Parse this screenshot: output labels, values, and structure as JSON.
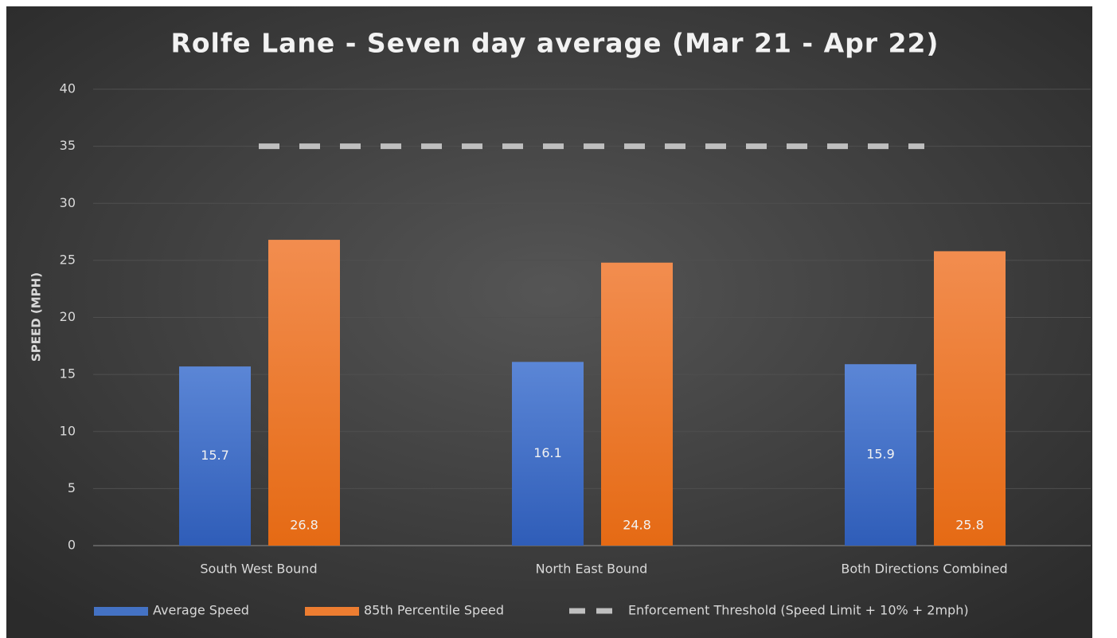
{
  "chart_data": {
    "type": "bar",
    "title": "Rolfe Lane - Seven day average (Mar 21 - Apr 22)",
    "y_label": "SPEED (MPH)",
    "categories": [
      "South West Bound",
      "North East Bound",
      "Both Directions Combined"
    ],
    "series": [
      {
        "name": "Average Speed",
        "color": "#4472c4",
        "values": [
          15.7,
          16.1,
          15.9
        ]
      },
      {
        "name": "85th Percentile Speed",
        "color": "#ed7d31",
        "values": [
          26.8,
          24.8,
          25.8
        ]
      },
      {
        "name": "Enforcement Threshold (Speed Limit + 10% + 2mph)",
        "color": "#bfbfbf",
        "type": "line",
        "dashed": true,
        "values": [
          35,
          35,
          35
        ]
      }
    ],
    "ylim": [
      0,
      40
    ],
    "yticks": [
      0,
      5,
      10,
      15,
      20,
      25,
      30,
      35,
      40
    ],
    "grid": true,
    "legend": "bottom"
  }
}
